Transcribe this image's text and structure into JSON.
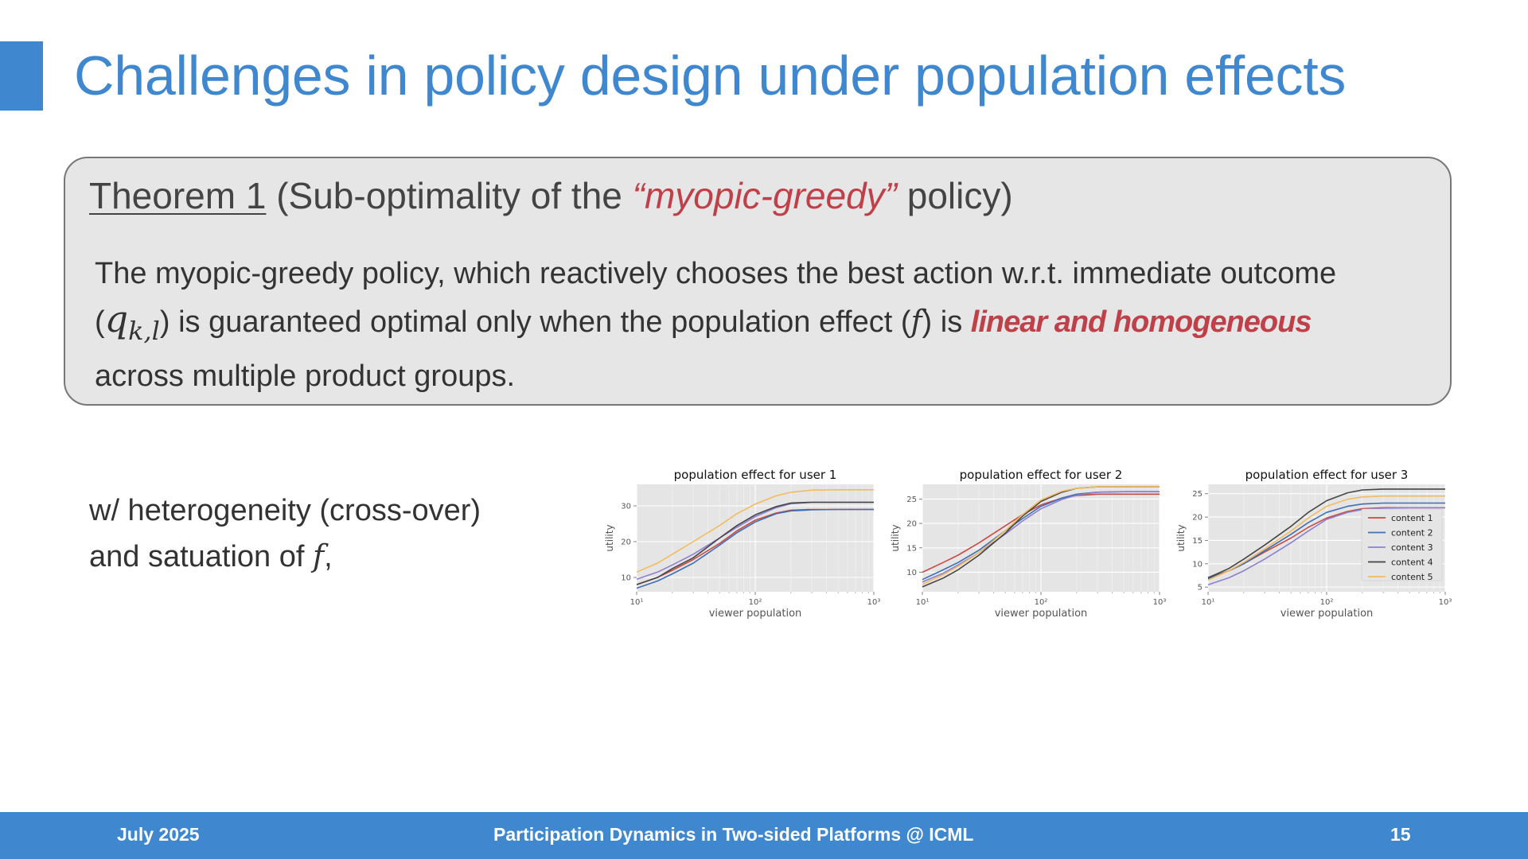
{
  "slide": {
    "title": "Challenges in policy design under population effects",
    "accent_color": "#3f88d0"
  },
  "theorem": {
    "label": "Theorem 1",
    "open": " (Sub-optimality of the ",
    "policy_name": "“myopic-greedy”",
    "close": " policy)",
    "body_1": "The myopic-greedy policy, which reactively chooses the best action w.r.t. immediate outcome",
    "paren_open": "(",
    "q": "q",
    "q_sub": "k,l",
    "body_2": ") is guaranteed optimal only when the population effect (",
    "f": "f",
    "body_3": ") is ",
    "highlight": "linear and homogeneous",
    "body_4": "across multiple product groups.",
    "highlight_color": "#c0404a"
  },
  "note": {
    "line_1": "w/ heterogeneity (cross-over)",
    "line_2": "and satuation of ",
    "f": "f",
    "comma": ","
  },
  "footer": {
    "date": "July 2025",
    "conference": "Participation Dynamics in Two-sided Platforms @ ICML",
    "page": "15"
  },
  "chart_data": [
    {
      "type": "line",
      "title": "population effect for user 1",
      "xlabel": "viewer population",
      "ylabel": "utility",
      "xscale": "log",
      "xlim": [
        10,
        1000
      ],
      "ylim": [
        6,
        36
      ],
      "xticks": [
        "10¹",
        "10²",
        "10³"
      ],
      "yticks": [
        10,
        20,
        30
      ],
      "grid": true,
      "x": [
        10,
        15,
        20,
        30,
        50,
        70,
        100,
        150,
        200,
        300,
        500,
        700,
        1000
      ],
      "series": [
        {
          "name": "content 1",
          "color": "#c84a44",
          "values": [
            8.0,
            10.0,
            12.0,
            15.0,
            19.5,
            23.0,
            26.0,
            28.0,
            28.8,
            29.0,
            29.0,
            29.0,
            29.0
          ]
        },
        {
          "name": "content 2",
          "color": "#3d6fb5",
          "values": [
            7.0,
            9.0,
            11.0,
            14.0,
            19.0,
            22.5,
            25.5,
            27.8,
            28.6,
            28.9,
            29.0,
            29.0,
            29.0
          ]
        },
        {
          "name": "content 3",
          "color": "#8c7fd0",
          "values": [
            9.5,
            11.5,
            13.5,
            16.5,
            21.0,
            24.0,
            27.0,
            29.5,
            30.6,
            31.0,
            31.0,
            31.0,
            31.0
          ]
        },
        {
          "name": "content 4",
          "color": "#454545",
          "values": [
            8.0,
            10.0,
            12.5,
            15.5,
            21.0,
            24.5,
            27.5,
            29.8,
            30.8,
            31.0,
            31.0,
            31.0,
            31.0
          ]
        },
        {
          "name": "content 5",
          "color": "#f2bb5e",
          "values": [
            11.5,
            14.0,
            16.5,
            20.0,
            24.5,
            27.8,
            30.5,
            32.8,
            33.8,
            34.4,
            34.5,
            34.5,
            34.5
          ]
        }
      ]
    },
    {
      "type": "line",
      "title": "population effect for user 2",
      "xlabel": "viewer population",
      "ylabel": "utility",
      "xscale": "log",
      "xlim": [
        10,
        1000
      ],
      "ylim": [
        6,
        28
      ],
      "xticks": [
        "10¹",
        "10²",
        "10³"
      ],
      "yticks": [
        10,
        15,
        20,
        25
      ],
      "grid": true,
      "x": [
        10,
        15,
        20,
        30,
        50,
        70,
        100,
        150,
        200,
        300,
        500,
        700,
        1000
      ],
      "series": [
        {
          "name": "content 1",
          "color": "#c84a44",
          "values": [
            10.0,
            12.0,
            13.5,
            16.0,
            19.5,
            21.8,
            23.8,
            25.2,
            25.7,
            26.0,
            26.0,
            26.0,
            26.0
          ]
        },
        {
          "name": "content 2",
          "color": "#3d6fb5",
          "values": [
            8.5,
            10.5,
            12.0,
            14.5,
            18.5,
            21.0,
            23.5,
            25.2,
            26.0,
            26.4,
            26.5,
            26.5,
            26.5
          ]
        },
        {
          "name": "content 3",
          "color": "#8c7fd0",
          "values": [
            8.0,
            9.8,
            11.5,
            14.0,
            17.8,
            20.5,
            23.0,
            24.9,
            25.8,
            26.4,
            26.5,
            26.5,
            26.5
          ]
        },
        {
          "name": "content 4",
          "color": "#454545",
          "values": [
            7.0,
            8.8,
            10.5,
            13.5,
            18.0,
            21.5,
            24.5,
            26.4,
            27.2,
            27.5,
            27.5,
            27.5,
            27.5
          ]
        },
        {
          "name": "content 5",
          "color": "#f2bb5e",
          "values": [
            7.5,
            9.5,
            11.2,
            14.0,
            18.5,
            21.8,
            24.8,
            26.6,
            27.2,
            27.5,
            27.5,
            27.5,
            27.5
          ]
        }
      ]
    },
    {
      "type": "line",
      "title": "population effect for user 3",
      "xlabel": "viewer population",
      "ylabel": "utility",
      "xscale": "log",
      "xlim": [
        10,
        1000
      ],
      "ylim": [
        4,
        27
      ],
      "xticks": [
        "10¹",
        "10²",
        "10³"
      ],
      "yticks": [
        5,
        10,
        15,
        20,
        25
      ],
      "grid": true,
      "legend": "right",
      "x": [
        10,
        15,
        20,
        30,
        50,
        70,
        100,
        150,
        200,
        300,
        500,
        700,
        1000
      ],
      "series": [
        {
          "name": "content 1",
          "color": "#c84a44",
          "values": [
            7.0,
            8.5,
            10.0,
            12.5,
            15.5,
            17.8,
            19.8,
            21.2,
            21.8,
            22.0,
            22.0,
            22.0,
            22.0
          ]
        },
        {
          "name": "content 2",
          "color": "#3d6fb5",
          "values": [
            6.8,
            8.5,
            10.0,
            12.8,
            16.3,
            18.8,
            21.0,
            22.3,
            22.8,
            23.0,
            23.0,
            23.0,
            23.0
          ]
        },
        {
          "name": "content 3",
          "color": "#8c7fd0",
          "values": [
            5.5,
            7.0,
            8.5,
            11.0,
            14.5,
            17.0,
            19.5,
            21.0,
            21.6,
            21.9,
            22.0,
            22.0,
            22.0
          ]
        },
        {
          "name": "content 4",
          "color": "#454545",
          "values": [
            7.0,
            9.0,
            11.0,
            14.0,
            18.0,
            21.0,
            23.5,
            25.2,
            25.8,
            26.0,
            26.0,
            26.0,
            26.0
          ]
        },
        {
          "name": "content 5",
          "color": "#f2bb5e",
          "values": [
            6.5,
            8.5,
            10.3,
            13.2,
            17.0,
            19.8,
            22.3,
            23.8,
            24.3,
            24.5,
            24.5,
            24.5,
            24.5
          ]
        }
      ]
    }
  ]
}
